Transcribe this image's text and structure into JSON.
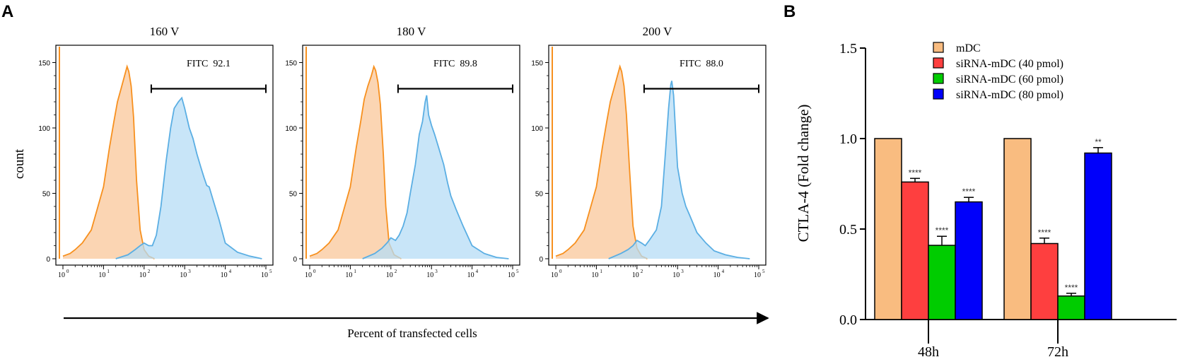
{
  "panel_labels": {
    "a": "A",
    "b": "B"
  },
  "chart_data": [
    {
      "type": "histogram",
      "panel": "A",
      "ylabel": "count",
      "xlabel": "Percent of transfected cells",
      "x_scale": "log10",
      "xlim": [
        1,
        100000
      ],
      "ylim": [
        0,
        160
      ],
      "yticks": [
        "0",
        "50",
        "100",
        "150"
      ],
      "xtick_base": "10",
      "xtick_exps": [
        "0",
        "1",
        "2",
        "3",
        "4",
        "5"
      ],
      "colors": {
        "control": "#f7901e",
        "control_fill": "#f9c79a",
        "transfected": "#5aaee3",
        "transfected_fill": "#b5dcf6"
      },
      "subplots": [
        {
          "title": "160 V",
          "gate": {
            "label": "FITC  92.1",
            "x_start": 150,
            "x_end": 100000,
            "y": 130
          },
          "series": [
            {
              "name": "control",
              "points": [
                [
                  1,
                  2
                ],
                [
                  1.5,
                  4
                ],
                [
                  2,
                  7
                ],
                [
                  3,
                  12
                ],
                [
                  5,
                  22
                ],
                [
                  7,
                  38
                ],
                [
                  10,
                  55
                ],
                [
                  14,
                  85
                ],
                [
                  18,
                  105
                ],
                [
                  22,
                  120
                ],
                [
                  27,
                  130
                ],
                [
                  33,
                  140
                ],
                [
                  38,
                  147
                ],
                [
                  42,
                  143
                ],
                [
                  48,
                  132
                ],
                [
                  55,
                  108
                ],
                [
                  65,
                  60
                ],
                [
                  80,
                  22
                ],
                [
                  100,
                  7
                ],
                [
                  130,
                  2
                ],
                [
                  180,
                  0
                ]
              ]
            },
            {
              "name": "transfected",
              "points": [
                [
                  20,
                  0
                ],
                [
                  40,
                  3
                ],
                [
                  60,
                  7
                ],
                [
                  80,
                  10
                ],
                [
                  100,
                  12
                ],
                [
                  130,
                  10
                ],
                [
                  160,
                  10
                ],
                [
                  200,
                  18
                ],
                [
                  260,
                  40
                ],
                [
                  350,
                  75
                ],
                [
                  450,
                  100
                ],
                [
                  550,
                  115
                ],
                [
                  700,
                  120
                ],
                [
                  850,
                  123
                ],
                [
                  1000,
                  115
                ],
                [
                  1300,
                  100
                ],
                [
                  1600,
                  92
                ],
                [
                  2000,
                  80
                ],
                [
                  2500,
                  70
                ],
                [
                  3000,
                  62
                ],
                [
                  3500,
                  56
                ],
                [
                  4000,
                  55
                ],
                [
                  5000,
                  45
                ],
                [
                  7000,
                  30
                ],
                [
                  10000,
                  12
                ],
                [
                  20000,
                  5
                ],
                [
                  40000,
                  2
                ],
                [
                  80000,
                  0
                ]
              ]
            }
          ]
        },
        {
          "title": "180 V",
          "gate": {
            "label": "FITC  89.8",
            "x_start": 150,
            "x_end": 100000,
            "y": 130
          },
          "series": [
            {
              "name": "control",
              "points": [
                [
                  1,
                  2
                ],
                [
                  1.5,
                  4
                ],
                [
                  2,
                  7
                ],
                [
                  3,
                  12
                ],
                [
                  5,
                  22
                ],
                [
                  7,
                  38
                ],
                [
                  10,
                  55
                ],
                [
                  14,
                  85
                ],
                [
                  18,
                  105
                ],
                [
                  22,
                  122
                ],
                [
                  27,
                  132
                ],
                [
                  33,
                  140
                ],
                [
                  38,
                  147
                ],
                [
                  42,
                  144
                ],
                [
                  48,
                  135
                ],
                [
                  55,
                  118
                ],
                [
                  65,
                  80
                ],
                [
                  75,
                  40
                ],
                [
                  90,
                  12
                ],
                [
                  120,
                  3
                ],
                [
                  180,
                  0
                ]
              ]
            },
            {
              "name": "transfected",
              "points": [
                [
                  20,
                  0
                ],
                [
                  40,
                  4
                ],
                [
                  60,
                  8
                ],
                [
                  80,
                  12
                ],
                [
                  100,
                  16
                ],
                [
                  130,
                  14
                ],
                [
                  160,
                  18
                ],
                [
                  200,
                  25
                ],
                [
                  250,
                  35
                ],
                [
                  300,
                  50
                ],
                [
                  400,
                  72
                ],
                [
                  500,
                  95
                ],
                [
                  600,
                  105
                ],
                [
                  700,
                  120
                ],
                [
                  760,
                  125
                ],
                [
                  850,
                  110
                ],
                [
                  1000,
                  102
                ],
                [
                  1200,
                  95
                ],
                [
                  1500,
                  85
                ],
                [
                  2000,
                  72
                ],
                [
                  2500,
                  58
                ],
                [
                  3000,
                  48
                ],
                [
                  4000,
                  38
                ],
                [
                  6000,
                  25
                ],
                [
                  10000,
                  10
                ],
                [
                  20000,
                  4
                ],
                [
                  40000,
                  1
                ],
                [
                  80000,
                  0
                ]
              ]
            }
          ]
        },
        {
          "title": "200 V",
          "gate": {
            "label": "FITC  88.0",
            "x_start": 150,
            "x_end": 100000,
            "y": 130
          },
          "series": [
            {
              "name": "control",
              "points": [
                [
                  1,
                  2
                ],
                [
                  1.5,
                  4
                ],
                [
                  2,
                  7
                ],
                [
                  3,
                  12
                ],
                [
                  5,
                  22
                ],
                [
                  7,
                  38
                ],
                [
                  10,
                  55
                ],
                [
                  14,
                  85
                ],
                [
                  18,
                  105
                ],
                [
                  22,
                  120
                ],
                [
                  27,
                  130
                ],
                [
                  33,
                  140
                ],
                [
                  38,
                  147
                ],
                [
                  42,
                  143
                ],
                [
                  48,
                  132
                ],
                [
                  55,
                  110
                ],
                [
                  65,
                  70
                ],
                [
                  80,
                  25
                ],
                [
                  100,
                  8
                ],
                [
                  130,
                  2
                ],
                [
                  180,
                  0
                ]
              ]
            },
            {
              "name": "transfected",
              "points": [
                [
                  20,
                  0
                ],
                [
                  40,
                  4
                ],
                [
                  60,
                  7
                ],
                [
                  80,
                  10
                ],
                [
                  100,
                  14
                ],
                [
                  130,
                  12
                ],
                [
                  160,
                  10
                ],
                [
                  200,
                  14
                ],
                [
                  300,
                  22
                ],
                [
                  400,
                  40
                ],
                [
                  500,
                  80
                ],
                [
                  600,
                  115
                ],
                [
                  680,
                  133
                ],
                [
                  720,
                  136
                ],
                [
                  800,
                  125
                ],
                [
                  900,
                  95
                ],
                [
                  1000,
                  70
                ],
                [
                  1300,
                  50
                ],
                [
                  1600,
                  40
                ],
                [
                  2000,
                  33
                ],
                [
                  3000,
                  20
                ],
                [
                  5000,
                  12
                ],
                [
                  8000,
                  6
                ],
                [
                  15000,
                  3
                ],
                [
                  30000,
                  1
                ],
                [
                  60000,
                  0
                ]
              ]
            }
          ]
        }
      ]
    },
    {
      "type": "bar",
      "panel": "B",
      "ylabel": "CTLA-4 (Fold change)",
      "xlabel": "",
      "ylim": [
        0,
        1.5
      ],
      "yticks": [
        "0.0",
        "0.5",
        "1.0",
        "1.5"
      ],
      "categories": [
        "48h",
        "72h"
      ],
      "legend_position": "top-left",
      "series": [
        {
          "name": "mDC",
          "color": "#f9bc80",
          "values": [
            1.0,
            1.0
          ],
          "errors": [
            0,
            0
          ],
          "sig": [
            "",
            ""
          ]
        },
        {
          "name": "siRNA-mDC (40 pmol)",
          "color": "#fe3f3f",
          "values": [
            0.76,
            0.42
          ],
          "errors": [
            0.02,
            0.03
          ],
          "sig": [
            "****",
            "****"
          ]
        },
        {
          "name": "siRNA-mDC (60 pmol)",
          "color": "#00cc00",
          "values": [
            0.41,
            0.13
          ],
          "errors": [
            0.05,
            0.015
          ],
          "sig": [
            "****",
            "****"
          ]
        },
        {
          "name": "siRNA-mDC (80 pmol)",
          "color": "#0000fa",
          "values": [
            0.65,
            0.92
          ],
          "errors": [
            0.025,
            0.03
          ],
          "sig": [
            "****",
            "**"
          ]
        }
      ]
    }
  ]
}
